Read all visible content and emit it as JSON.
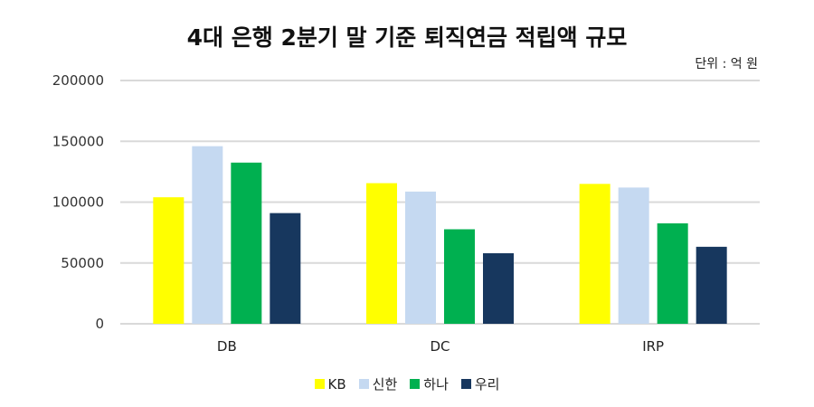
{
  "chart_data": {
    "type": "bar",
    "title": "4대 은행 2분기 말 기준 퇴직연금 적립액 규모",
    "unit_note": "단위 : 억 원",
    "categories": [
      "DB",
      "DC",
      "IRP"
    ],
    "series": [
      {
        "name": "KB",
        "color": "#FFFF00",
        "values": [
          104000,
          115600,
          115000
        ]
      },
      {
        "name": "신한",
        "color": "#C5D9F1",
        "values": [
          146000,
          108700,
          112000
        ]
      },
      {
        "name": "하나",
        "color": "#00B050",
        "values": [
          132500,
          77700,
          82600
        ]
      },
      {
        "name": "우리",
        "color": "#17375E",
        "values": [
          91000,
          58000,
          63300
        ]
      }
    ],
    "ylim": [
      0,
      200000
    ],
    "yticks": [
      "0",
      "50000",
      "100000",
      "150000",
      "200000"
    ],
    "grid": true,
    "legend": "bottom"
  }
}
